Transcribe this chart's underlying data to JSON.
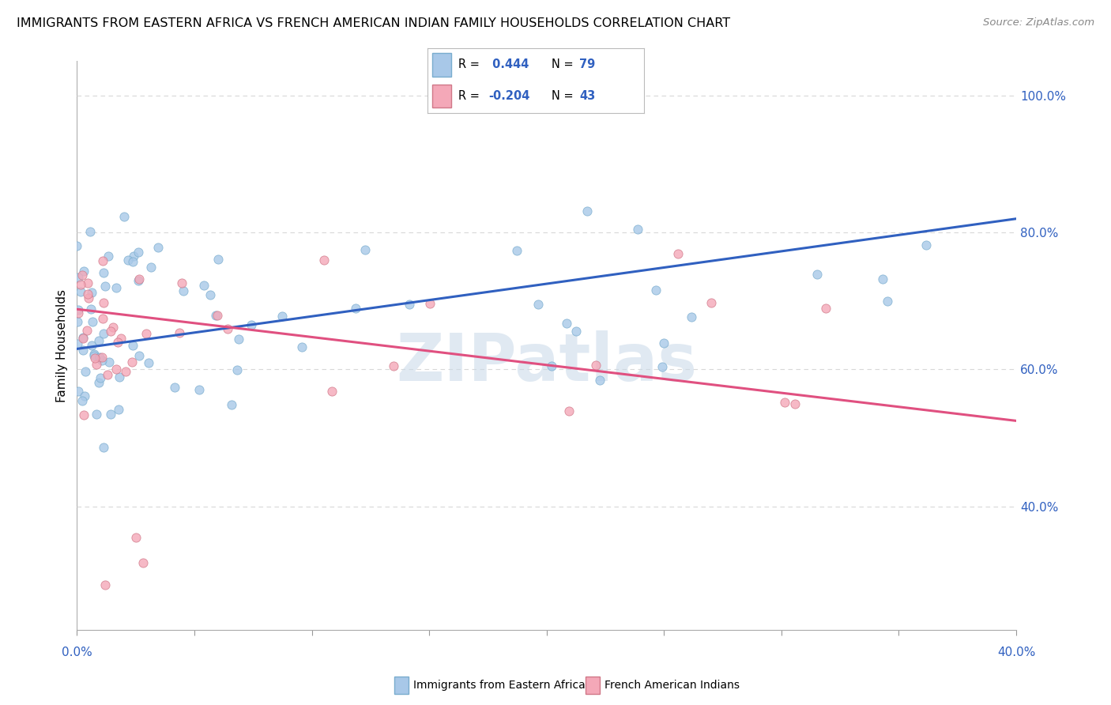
{
  "title": "IMMIGRANTS FROM EASTERN AFRICA VS FRENCH AMERICAN INDIAN FAMILY HOUSEHOLDS CORRELATION CHART",
  "source": "Source: ZipAtlas.com",
  "ylabel": "Family Households",
  "ytick_values": [
    0.4,
    0.6,
    0.8,
    1.0
  ],
  "legend_blue_r": " 0.444",
  "legend_blue_n": "79",
  "legend_pink_r": "-0.204",
  "legend_pink_n": "43",
  "legend_label_blue": "Immigrants from Eastern Africa",
  "legend_label_pink": "French American Indians",
  "blue_color": "#a8c8e8",
  "blue_edge_color": "#7aadce",
  "pink_color": "#f4a8b8",
  "pink_edge_color": "#d07888",
  "line_blue_color": "#3060c0",
  "line_pink_color": "#e05080",
  "watermark": "ZIPatlas",
  "watermark_color": "#c8d8e8",
  "xmin": 0.0,
  "xmax": 0.4,
  "ymin": 0.22,
  "ymax": 1.05,
  "blue_line_y0": 0.63,
  "blue_line_y1": 0.82,
  "pink_line_y0": 0.688,
  "pink_line_y1": 0.525,
  "grid_color": "#d8d8d8",
  "bg_color": "#ffffff",
  "title_fontsize": 11.5,
  "source_fontsize": 9.5,
  "axis_label_color": "#3060c0",
  "tick_label_fontsize": 11
}
